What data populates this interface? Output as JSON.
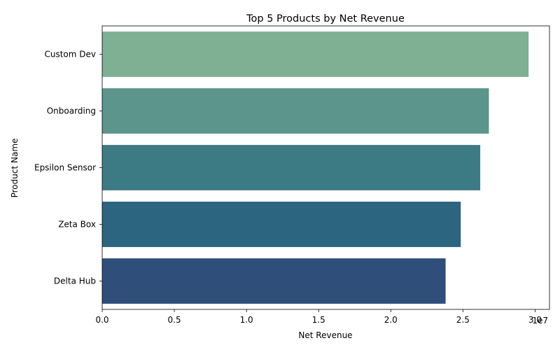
{
  "chart_data": {
    "type": "bar",
    "orientation": "horizontal",
    "title": "Top 5 Products by Net Revenue",
    "xlabel": "Net Revenue",
    "ylabel": "Product Name",
    "x_scale_note": "1e7",
    "categories": [
      "Custom Dev",
      "Onboarding",
      "Epsilon Sensor",
      "Zeta Box",
      "Delta Hub"
    ],
    "values": [
      29550000,
      26800000,
      26200000,
      24850000,
      23800000
    ],
    "xlim": [
      0,
      31000000
    ],
    "x_ticks": [
      0,
      5000000,
      10000000,
      15000000,
      20000000,
      25000000,
      30000000
    ],
    "x_tick_labels": [
      "0.0",
      "0.5",
      "1.0",
      "1.5",
      "2.0",
      "2.5",
      "3.0"
    ],
    "colors": [
      "#7fb093",
      "#5b958c",
      "#3d7b84",
      "#2b6580",
      "#2f4f7a"
    ],
    "grid": false,
    "legend": "none"
  }
}
